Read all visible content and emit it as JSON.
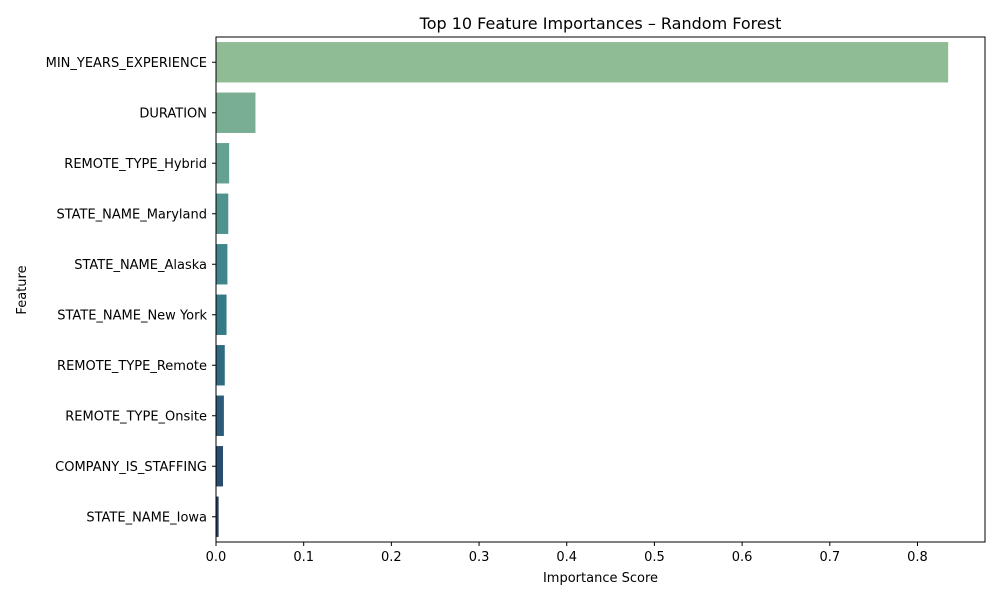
{
  "chart_data": {
    "type": "bar",
    "orientation": "horizontal",
    "title": "Top 10 Feature Importances – Random Forest",
    "xlabel": "Importance Score",
    "ylabel": "Feature",
    "xlim": [
      0,
      0.877
    ],
    "x_ticks": [
      "0.0",
      "0.1",
      "0.2",
      "0.3",
      "0.4",
      "0.5",
      "0.6",
      "0.7",
      "0.8"
    ],
    "x_tick_values": [
      0,
      0.1,
      0.2,
      0.3,
      0.4,
      0.5,
      0.6,
      0.7,
      0.8
    ],
    "grid": false,
    "categories": [
      "MIN_YEARS_EXPERIENCE",
      "DURATION",
      "REMOTE_TYPE_Hybrid",
      "STATE_NAME_Maryland",
      "STATE_NAME_Alaska",
      "STATE_NAME_New York",
      "REMOTE_TYPE_Remote",
      "REMOTE_TYPE_Onsite",
      "COMPANY_IS_STAFFING",
      "STATE_NAME_Iowa"
    ],
    "values": [
      0.835,
      0.045,
      0.015,
      0.014,
      0.013,
      0.012,
      0.01,
      0.009,
      0.008,
      0.003
    ],
    "colors": [
      "#8fbc94",
      "#7aae94",
      "#65a190",
      "#50938e",
      "#3f858b",
      "#357a87",
      "#2e6b80",
      "#2b5b78",
      "#2a4c6d",
      "#283c63"
    ]
  }
}
